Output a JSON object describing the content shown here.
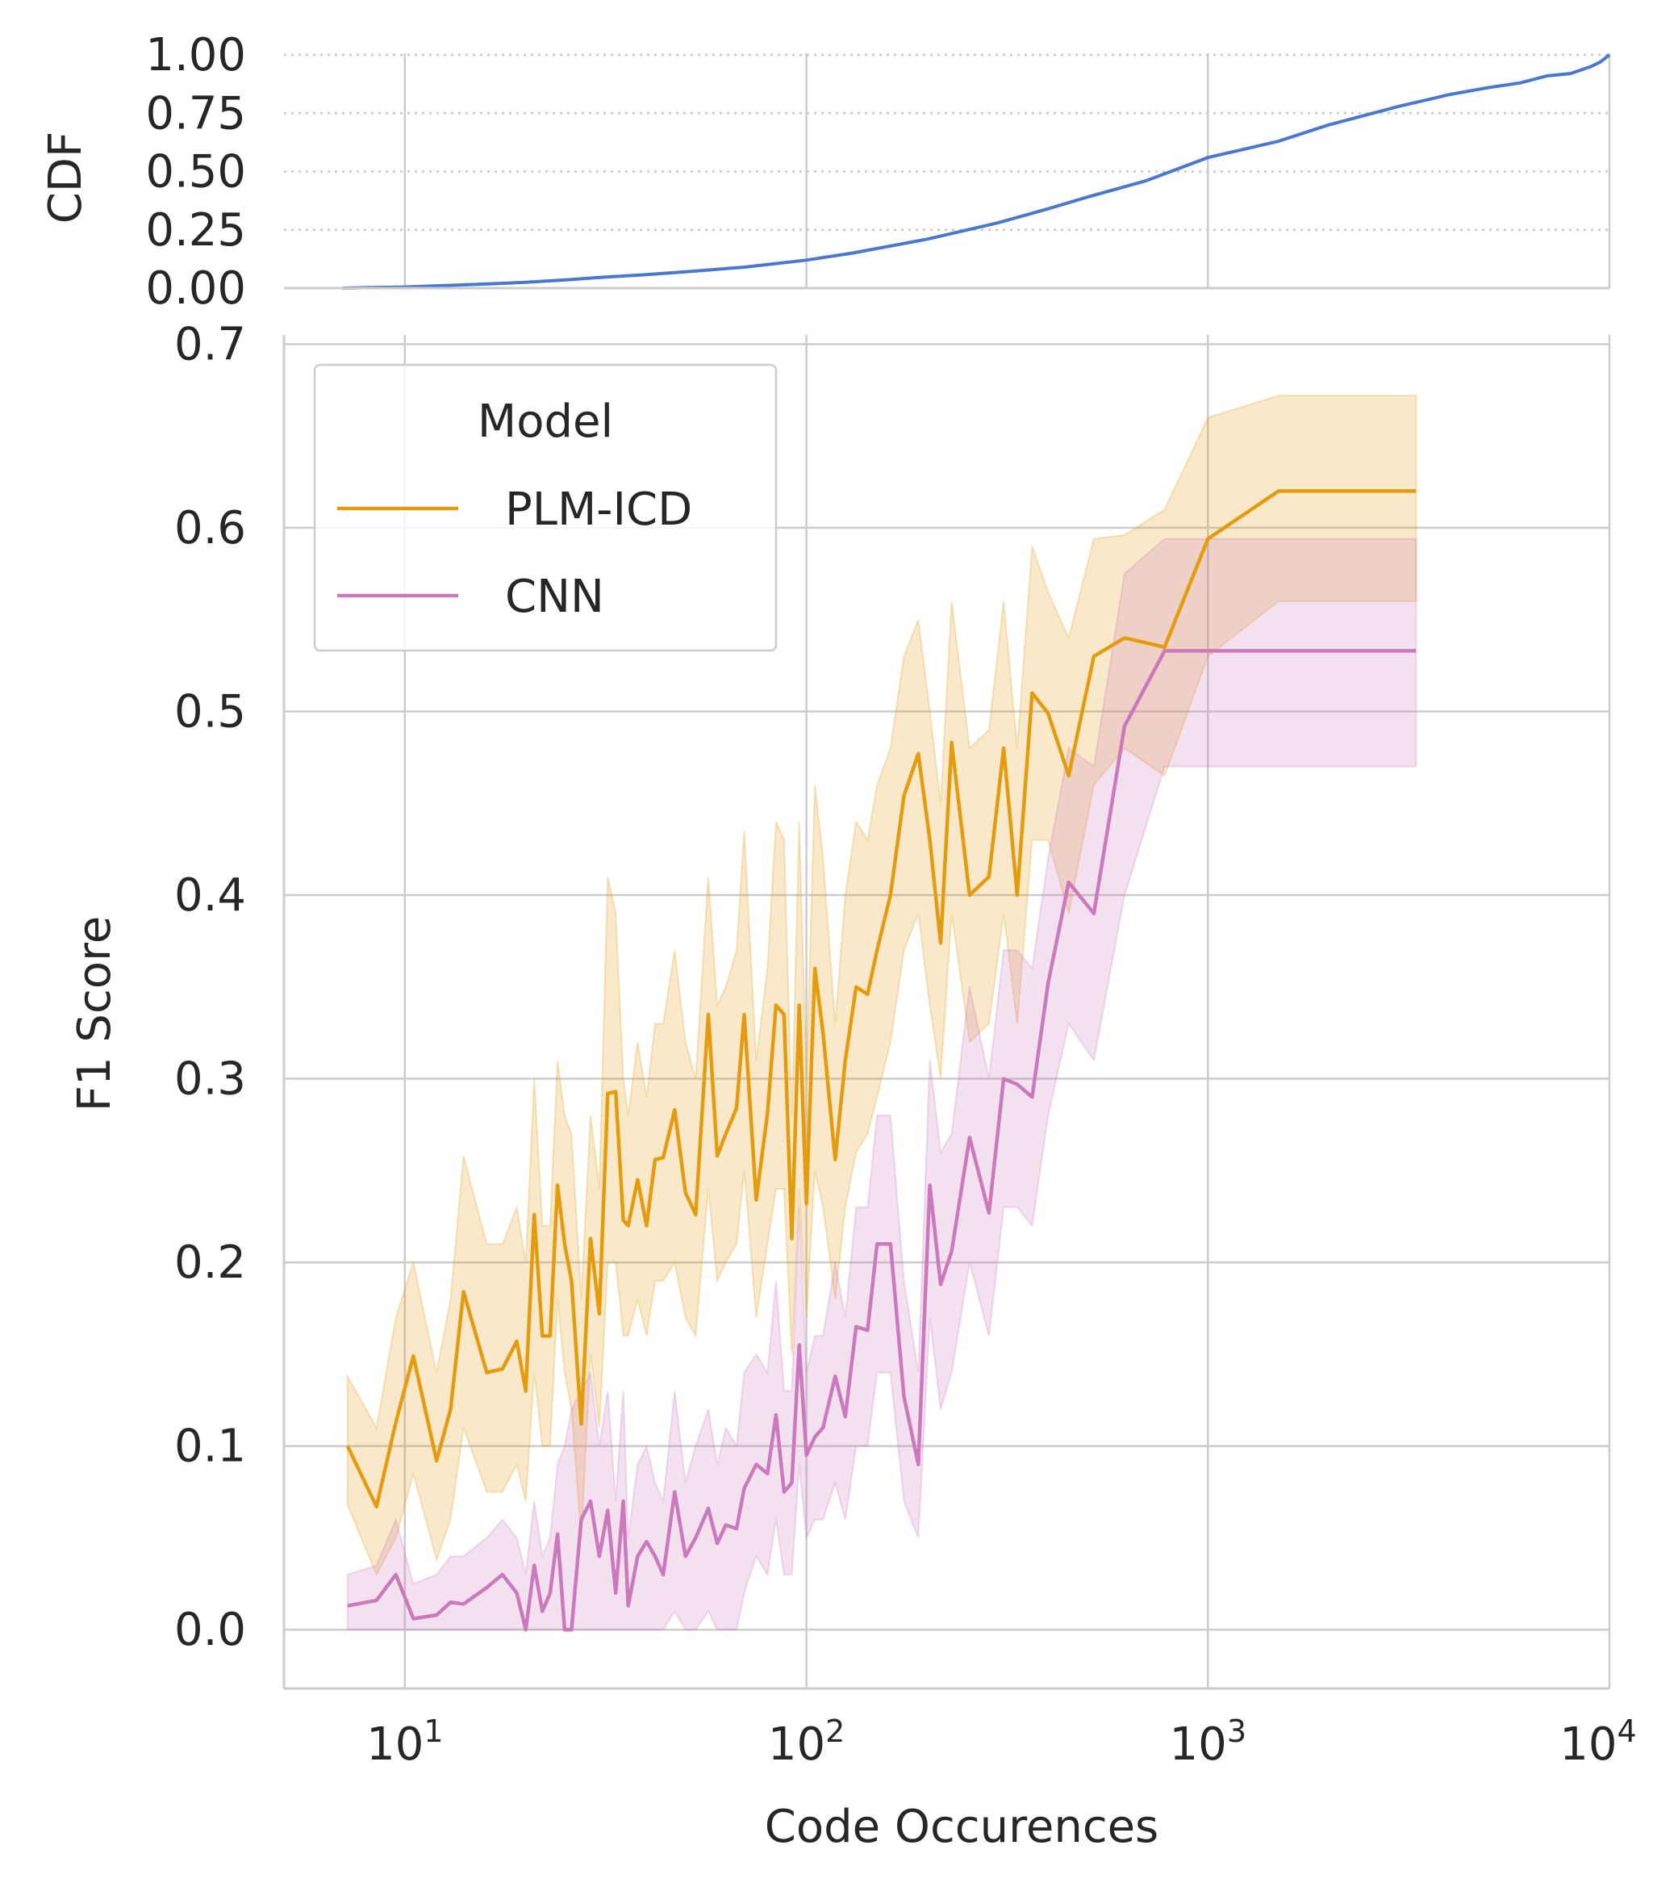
{
  "chart_data": [
    {
      "type": "line",
      "ylabel": "CDF",
      "xscale": "log",
      "xlim": [
        5,
        10000
      ],
      "ylim": [
        0,
        1
      ],
      "yticks": [
        "0.00",
        "0.25",
        "0.50",
        "0.75",
        "1.00"
      ],
      "grid": {
        "x": "solid",
        "y": "dotted"
      },
      "colors": {
        "line": "#4878d0"
      },
      "series": [
        {
          "x": [
            7,
            8,
            10,
            12,
            15,
            20,
            25,
            30,
            40,
            50,
            70,
            100,
            130,
            200,
            300,
            400,
            500,
            700,
            1000,
            1500,
            2000,
            3000,
            4000,
            5000,
            6000,
            7000,
            8000,
            9000,
            9500,
            10000
          ],
          "y": [
            0.0,
            0.002,
            0.005,
            0.01,
            0.016,
            0.025,
            0.035,
            0.045,
            0.058,
            0.07,
            0.09,
            0.12,
            0.15,
            0.21,
            0.28,
            0.34,
            0.39,
            0.46,
            0.56,
            0.63,
            0.7,
            0.78,
            0.83,
            0.86,
            0.88,
            0.91,
            0.92,
            0.95,
            0.97,
            1.0
          ]
        }
      ]
    },
    {
      "type": "line",
      "title": "",
      "xlabel": "Code Occurences",
      "ylabel": "F1 Score",
      "xscale": "log",
      "xlim": [
        5,
        10000
      ],
      "ylim": [
        -0.032,
        0.705
      ],
      "xticks": [
        {
          "value": 10,
          "base": "10",
          "exp": "1"
        },
        {
          "value": 100,
          "base": "10",
          "exp": "2"
        },
        {
          "value": 1000,
          "base": "10",
          "exp": "3"
        },
        {
          "value": 10000,
          "base": "10",
          "exp": "4"
        }
      ],
      "yticks": [
        "0.0",
        "0.1",
        "0.2",
        "0.3",
        "0.4",
        "0.5",
        "0.6",
        "0.7"
      ],
      "grid": true,
      "legend": {
        "title": "Model",
        "position": "top-left"
      },
      "series": [
        {
          "name": "PLM-ICD",
          "color": "#e59b0e",
          "x": [
            7.2,
            8.5,
            9.5,
            10.5,
            12,
            13,
            14,
            16,
            17.5,
            19,
            20,
            21,
            22,
            23,
            24,
            25,
            26,
            27.5,
            29,
            30.5,
            32,
            33.5,
            35,
            36,
            38,
            40,
            42,
            44,
            47,
            50,
            53,
            57,
            60,
            63,
            67,
            70,
            75,
            80,
            84,
            88,
            92,
            96,
            100,
            105,
            110,
            118,
            125,
            133,
            142,
            150,
            162,
            175,
            190,
            203,
            216,
            230,
            255,
            285,
            310,
            335,
            365,
            400,
            450,
            520,
            620,
            780,
            1000,
            1500,
            3300
          ],
          "y": [
            0.1,
            0.067,
            0.113,
            0.149,
            0.092,
            0.12,
            0.184,
            0.14,
            0.142,
            0.157,
            0.13,
            0.226,
            0.16,
            0.16,
            0.242,
            0.21,
            0.19,
            0.112,
            0.213,
            0.172,
            0.292,
            0.293,
            0.223,
            0.22,
            0.245,
            0.22,
            0.256,
            0.257,
            0.283,
            0.238,
            0.226,
            0.335,
            0.258,
            0.27,
            0.284,
            0.335,
            0.234,
            0.281,
            0.34,
            0.335,
            0.213,
            0.34,
            0.232,
            0.36,
            0.325,
            0.256,
            0.31,
            0.35,
            0.346,
            0.37,
            0.4,
            0.454,
            0.477,
            0.43,
            0.374,
            0.483,
            0.4,
            0.41,
            0.48,
            0.4,
            0.51,
            0.499,
            0.465,
            0.53,
            0.54,
            0.535,
            0.594,
            0.62,
            0.62
          ],
          "lower": [
            0.068,
            0.03,
            0.05,
            0.085,
            0.038,
            0.06,
            0.11,
            0.075,
            0.075,
            0.09,
            0.07,
            0.14,
            0.1,
            0.1,
            0.18,
            0.14,
            0.12,
            0.05,
            0.15,
            0.11,
            0.2,
            0.2,
            0.16,
            0.16,
            0.18,
            0.16,
            0.19,
            0.19,
            0.2,
            0.17,
            0.16,
            0.24,
            0.19,
            0.2,
            0.21,
            0.25,
            0.17,
            0.21,
            0.24,
            0.24,
            0.15,
            0.24,
            0.17,
            0.25,
            0.23,
            0.18,
            0.23,
            0.26,
            0.27,
            0.29,
            0.32,
            0.37,
            0.39,
            0.34,
            0.3,
            0.39,
            0.32,
            0.33,
            0.39,
            0.33,
            0.43,
            0.43,
            0.39,
            0.46,
            0.48,
            0.465,
            0.53,
            0.56,
            0.56
          ],
          "upper": [
            0.138,
            0.11,
            0.17,
            0.2,
            0.14,
            0.18,
            0.258,
            0.21,
            0.21,
            0.23,
            0.2,
            0.3,
            0.22,
            0.22,
            0.31,
            0.28,
            0.27,
            0.18,
            0.28,
            0.24,
            0.41,
            0.39,
            0.3,
            0.28,
            0.32,
            0.29,
            0.33,
            0.33,
            0.37,
            0.32,
            0.3,
            0.41,
            0.34,
            0.35,
            0.37,
            0.435,
            0.31,
            0.36,
            0.44,
            0.43,
            0.28,
            0.44,
            0.3,
            0.46,
            0.42,
            0.33,
            0.4,
            0.44,
            0.43,
            0.46,
            0.48,
            0.53,
            0.55,
            0.5,
            0.45,
            0.56,
            0.48,
            0.49,
            0.56,
            0.48,
            0.59,
            0.565,
            0.54,
            0.594,
            0.596,
            0.61,
            0.66,
            0.672,
            0.672
          ]
        },
        {
          "name": "CNN",
          "color": "#cc78bc",
          "x": [
            7.2,
            8.5,
            9.5,
            10.5,
            12,
            13,
            14,
            16,
            17.5,
            19,
            20,
            21,
            22,
            23,
            24,
            25,
            26,
            27.5,
            29,
            30.5,
            32,
            33.5,
            35,
            36,
            38,
            40,
            42,
            44,
            47,
            50,
            53,
            57,
            60,
            63,
            67,
            70,
            75,
            80,
            84,
            88,
            92,
            96,
            100,
            105,
            110,
            118,
            125,
            133,
            142,
            150,
            162,
            175,
            190,
            203,
            216,
            230,
            255,
            285,
            310,
            335,
            365,
            400,
            450,
            520,
            620,
            780,
            1000,
            1500,
            3300
          ],
          "y": [
            0.013,
            0.016,
            0.03,
            0.006,
            0.008,
            0.015,
            0.014,
            0.023,
            0.03,
            0.02,
            0.0,
            0.035,
            0.01,
            0.02,
            0.052,
            0.0,
            0.0,
            0.06,
            0.07,
            0.04,
            0.065,
            0.02,
            0.07,
            0.013,
            0.04,
            0.048,
            0.04,
            0.03,
            0.075,
            0.04,
            0.05,
            0.066,
            0.047,
            0.057,
            0.055,
            0.077,
            0.09,
            0.085,
            0.117,
            0.075,
            0.08,
            0.155,
            0.095,
            0.105,
            0.11,
            0.138,
            0.116,
            0.165,
            0.163,
            0.21,
            0.21,
            0.127,
            0.09,
            0.242,
            0.188,
            0.206,
            0.268,
            0.227,
            0.3,
            0.297,
            0.29,
            0.352,
            0.407,
            0.39,
            0.492,
            0.533,
            0.533,
            0.533,
            0.533
          ],
          "lower": [
            0.0,
            0.0,
            0.0,
            0.0,
            0.0,
            0.0,
            0.0,
            0.0,
            0.0,
            0.0,
            0.0,
            0.0,
            0.0,
            0.0,
            0.0,
            0.0,
            0.0,
            0.0,
            0.0,
            0.0,
            0.0,
            0.0,
            0.0,
            0.0,
            0.0,
            0.0,
            0.0,
            0.0,
            0.01,
            0.0,
            0.0,
            0.01,
            0.0,
            0.0,
            0.0,
            0.02,
            0.04,
            0.03,
            0.06,
            0.03,
            0.03,
            0.09,
            0.05,
            0.06,
            0.06,
            0.08,
            0.06,
            0.1,
            0.1,
            0.14,
            0.14,
            0.07,
            0.05,
            0.17,
            0.12,
            0.14,
            0.2,
            0.16,
            0.23,
            0.23,
            0.22,
            0.28,
            0.33,
            0.31,
            0.4,
            0.47,
            0.47,
            0.47,
            0.47
          ],
          "upper": [
            0.03,
            0.035,
            0.06,
            0.025,
            0.03,
            0.04,
            0.04,
            0.05,
            0.06,
            0.05,
            0.03,
            0.07,
            0.04,
            0.05,
            0.09,
            0.1,
            0.12,
            0.13,
            0.14,
            0.1,
            0.13,
            0.07,
            0.13,
            0.05,
            0.09,
            0.1,
            0.08,
            0.07,
            0.13,
            0.08,
            0.1,
            0.12,
            0.09,
            0.11,
            0.1,
            0.14,
            0.15,
            0.14,
            0.19,
            0.13,
            0.13,
            0.23,
            0.14,
            0.16,
            0.16,
            0.2,
            0.17,
            0.23,
            0.23,
            0.28,
            0.28,
            0.19,
            0.14,
            0.31,
            0.26,
            0.27,
            0.35,
            0.3,
            0.37,
            0.37,
            0.36,
            0.42,
            0.48,
            0.47,
            0.575,
            0.594,
            0.594,
            0.594,
            0.594
          ]
        }
      ]
    }
  ]
}
